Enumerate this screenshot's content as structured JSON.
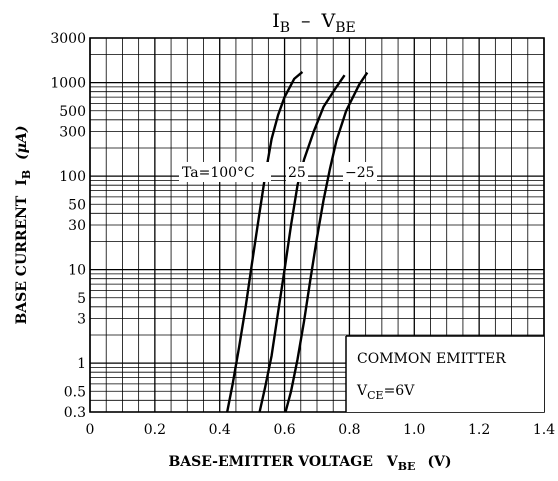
{
  "chart_data": {
    "type": "line",
    "title": {
      "left": "I",
      "left_sub": "B",
      "dash": "–",
      "right": "V",
      "right_sub": "BE"
    },
    "xlabel": {
      "text": "BASE-EMITTER VOLTAGE",
      "sym": "V",
      "sym_sub": "BE",
      "unit": "(V)"
    },
    "ylabel": {
      "text": "BASE CURRENT",
      "sym": "I",
      "sym_sub": "B",
      "unit": "(μA)"
    },
    "x_range": [
      0,
      1.4
    ],
    "y_range": [
      0.3,
      3000
    ],
    "y_scale": "log",
    "x_ticks": [
      "0",
      "0.2",
      "0.4",
      "0.6",
      "0.8",
      "1.0",
      "1.2",
      "1.4"
    ],
    "y_ticks": [
      "3000",
      "1000",
      "500",
      "300",
      "100",
      "50",
      "30",
      "10",
      "5",
      "3",
      "1",
      "0.5",
      "0.3"
    ],
    "grid": true,
    "annotation": {
      "line1": "COMMON EMITTER",
      "line2_sym": "V",
      "line2_sub": "CE",
      "line2_rest": "=6V"
    },
    "series": [
      {
        "name": "Ta=100°C",
        "points": [
          [
            0.423,
            0.3
          ],
          [
            0.44,
            0.6
          ],
          [
            0.46,
            1.5
          ],
          [
            0.48,
            4
          ],
          [
            0.5,
            12
          ],
          [
            0.52,
            35
          ],
          [
            0.54,
            100
          ],
          [
            0.56,
            250
          ],
          [
            0.58,
            450
          ],
          [
            0.6,
            700
          ],
          [
            0.63,
            1100
          ],
          [
            0.655,
            1300
          ]
        ]
      },
      {
        "name": "25",
        "points": [
          [
            0.523,
            0.3
          ],
          [
            0.54,
            0.55
          ],
          [
            0.56,
            1.2
          ],
          [
            0.58,
            3.5
          ],
          [
            0.6,
            10
          ],
          [
            0.62,
            30
          ],
          [
            0.64,
            80
          ],
          [
            0.66,
            150
          ],
          [
            0.69,
            300
          ],
          [
            0.72,
            550
          ],
          [
            0.76,
            900
          ],
          [
            0.785,
            1200
          ]
        ]
      },
      {
        "name": "−25",
        "points": [
          [
            0.603,
            0.3
          ],
          [
            0.62,
            0.5
          ],
          [
            0.64,
            1.1
          ],
          [
            0.66,
            2.8
          ],
          [
            0.68,
            8
          ],
          [
            0.7,
            22
          ],
          [
            0.72,
            55
          ],
          [
            0.74,
            120
          ],
          [
            0.76,
            240
          ],
          [
            0.79,
            500
          ],
          [
            0.83,
            950
          ],
          [
            0.855,
            1280
          ]
        ]
      }
    ]
  }
}
